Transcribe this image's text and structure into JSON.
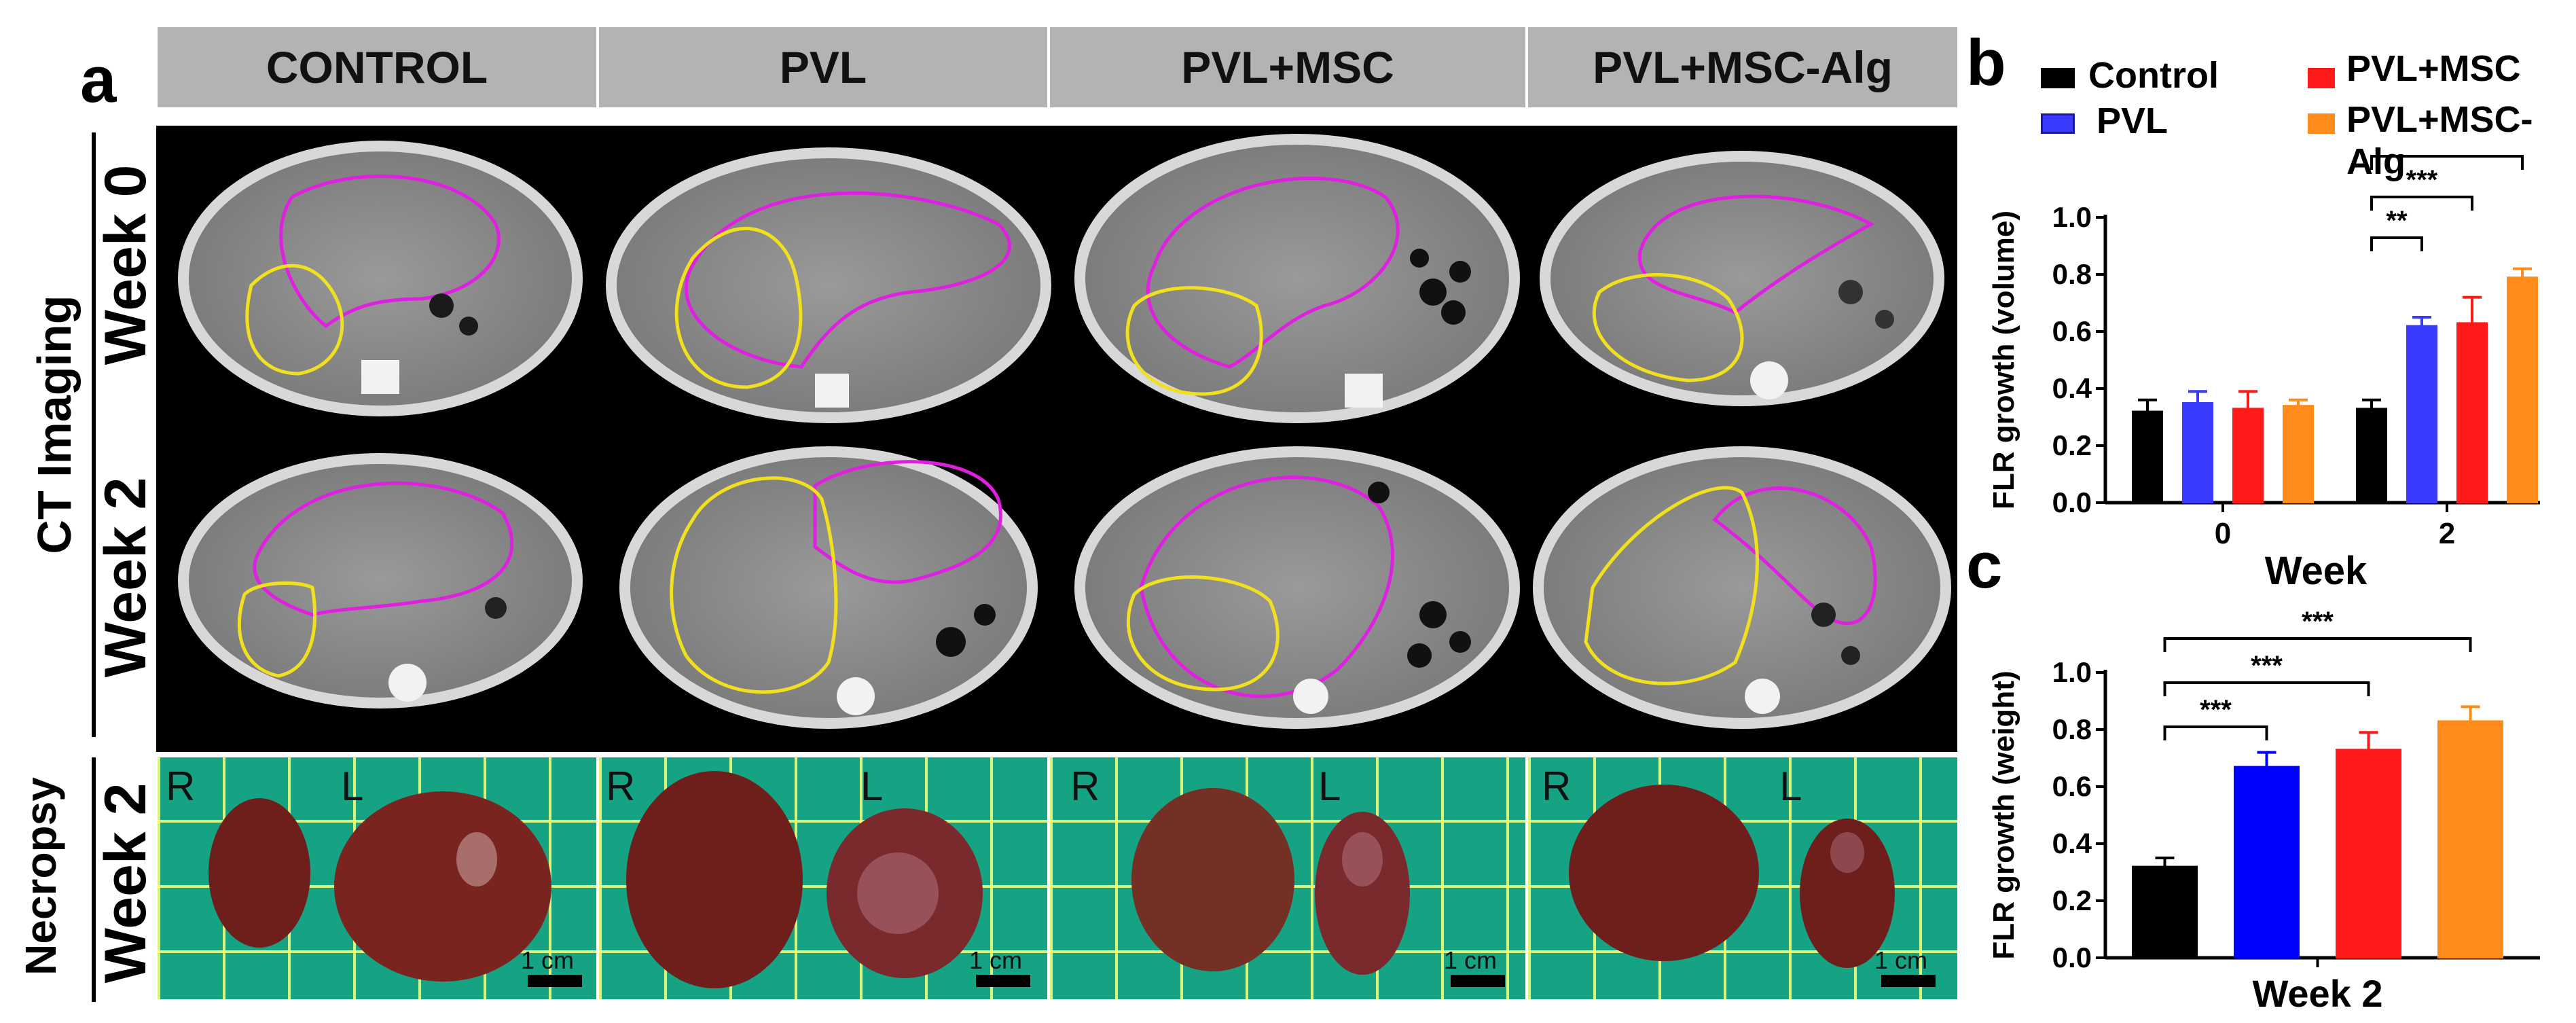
{
  "panel_a": {
    "letter": "a",
    "columns": [
      "CONTROL",
      "PVL",
      "PVL+MSC",
      "PVL+MSC-Alg"
    ],
    "row_group_ct": "CT Imaging",
    "row_week0": "Week 0",
    "row_week2": "Week 2",
    "row_group_necropsy": "Necropsy",
    "row_necropsy_week": "Week 2",
    "lobe_right": "R",
    "lobe_left": "L",
    "scale_label": "1 cm",
    "colors": {
      "header_bg": "#b3b3b3",
      "ct_bg": "#000000",
      "outline_magenta": "#e020e0",
      "outline_yellow": "#f0e020",
      "necropsy_grid": "#16a384",
      "liver": "#6e1f1c"
    }
  },
  "panel_b": {
    "letter": "b",
    "legend": [
      "Control",
      "PVL",
      "PVL+MSC",
      "PVL+MSC-Alg"
    ],
    "significance": [
      "**",
      "***",
      "***"
    ]
  },
  "panel_c": {
    "letter": "c",
    "significance": [
      "***",
      "***",
      "***"
    ]
  },
  "chart_data": [
    {
      "type": "bar",
      "panel": "b",
      "categories": [
        "0",
        "2"
      ],
      "xlabel": "Week",
      "ylabel": "FLR growth (volume)",
      "ylim": [
        0,
        1.0
      ],
      "yticks": [
        "0.0",
        "0.2",
        "0.4",
        "0.6",
        "0.8",
        "1.0"
      ],
      "legend_placement": "top",
      "series": [
        {
          "name": "Control",
          "color": "#000000",
          "values": [
            0.32,
            0.33
          ],
          "errors": [
            0.04,
            0.03
          ]
        },
        {
          "name": "PVL",
          "color": "#3a3aff",
          "values": [
            0.35,
            0.62
          ],
          "errors": [
            0.04,
            0.03
          ]
        },
        {
          "name": "PVL+MSC",
          "color": "#ff1a1a",
          "values": [
            0.33,
            0.63
          ],
          "errors": [
            0.06,
            0.09
          ]
        },
        {
          "name": "PVL+MSC-Alg",
          "color": "#ff8c1a",
          "values": [
            0.34,
            0.79
          ],
          "errors": [
            0.02,
            0.03
          ]
        }
      ],
      "comparisons": [
        {
          "group": "2",
          "from": "Control",
          "to": "PVL",
          "label": "**"
        },
        {
          "group": "2",
          "from": "Control",
          "to": "PVL+MSC",
          "label": "***"
        },
        {
          "group": "2",
          "from": "Control",
          "to": "PVL+MSC-Alg",
          "label": "***"
        }
      ]
    },
    {
      "type": "bar",
      "panel": "c",
      "categories": [
        "Control",
        "PVL",
        "PVL+MSC",
        "PVL+MSC-Alg"
      ],
      "xlabel": "Week 2",
      "ylabel": "FLR growth (weight)",
      "ylim": [
        0,
        1.0
      ],
      "yticks": [
        "0.0",
        "0.2",
        "0.4",
        "0.6",
        "0.8",
        "1.0"
      ],
      "series": [
        {
          "name": "",
          "colors": [
            "#000000",
            "#0000ff",
            "#ff1a1a",
            "#ff8c1a"
          ],
          "values": [
            0.32,
            0.67,
            0.73,
            0.83
          ],
          "errors": [
            0.03,
            0.05,
            0.06,
            0.05
          ]
        }
      ],
      "comparisons": [
        {
          "from": "Control",
          "to": "PVL",
          "label": "***"
        },
        {
          "from": "Control",
          "to": "PVL+MSC",
          "label": "***"
        },
        {
          "from": "Control",
          "to": "PVL+MSC-Alg",
          "label": "***"
        }
      ]
    }
  ]
}
